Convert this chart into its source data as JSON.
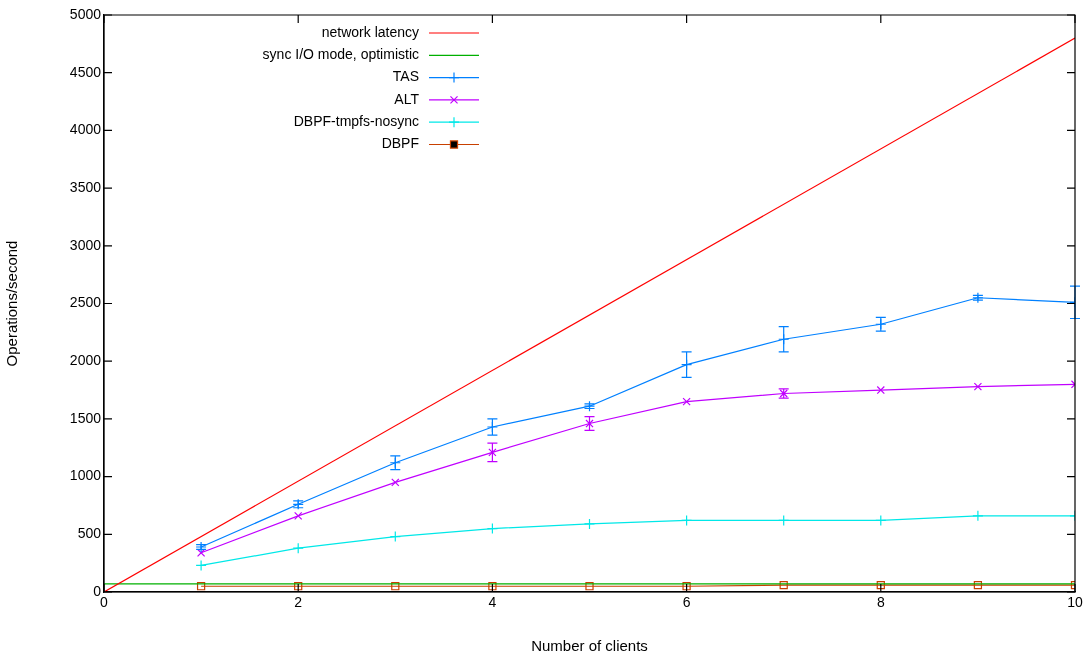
{
  "chart_data": {
    "type": "line",
    "xlabel": "Number of clients",
    "ylabel": "Operations/second",
    "xlim": [
      0,
      10
    ],
    "xticks": [
      0,
      2,
      4,
      6,
      8,
      10
    ],
    "ylim": [
      0,
      5000
    ],
    "yticks": [
      0,
      500,
      1000,
      1500,
      2000,
      2500,
      3000,
      3500,
      4000,
      4500,
      5000
    ],
    "grid": false,
    "legend": "top left",
    "series": [
      {
        "name": "network latency",
        "color": "#ff0000",
        "x": [
          0,
          10
        ],
        "values": [
          0,
          4800
        ],
        "marker": "none"
      },
      {
        "name": "sync I/O mode, optimistic",
        "color": "#00b000",
        "x": [
          0,
          10
        ],
        "values": [
          70,
          70
        ],
        "marker": "none"
      },
      {
        "name": "TAS",
        "color": "#0080ff",
        "x": [
          1,
          2,
          3,
          4,
          5,
          6,
          7,
          8,
          9,
          10
        ],
        "values": [
          390,
          760,
          1120,
          1430,
          1610,
          1970,
          2190,
          2320,
          2550,
          2510
        ],
        "errors": [
          20,
          30,
          60,
          70,
          20,
          110,
          110,
          60,
          20,
          140
        ],
        "marker": "cross"
      },
      {
        "name": "ALT",
        "color": "#c000ff",
        "x": [
          1,
          2,
          3,
          4,
          5,
          6,
          7,
          8,
          9,
          10
        ],
        "values": [
          340,
          660,
          950,
          1210,
          1460,
          1650,
          1720,
          1750,
          1780,
          1800
        ],
        "errors": [
          null,
          null,
          null,
          80,
          60,
          null,
          40,
          null,
          null,
          null
        ],
        "marker": "x"
      },
      {
        "name": "DBPF-tmpfs-nosync",
        "color": "#00e8e8",
        "x": [
          1,
          2,
          3,
          4,
          5,
          6,
          7,
          8,
          9,
          10
        ],
        "values": [
          230,
          380,
          480,
          550,
          590,
          620,
          620,
          620,
          660,
          660
        ],
        "marker": "cross"
      },
      {
        "name": "DBPF",
        "color": "#c84000",
        "x": [
          1,
          2,
          3,
          4,
          5,
          6,
          7,
          8,
          9,
          10
        ],
        "values": [
          50,
          50,
          50,
          50,
          50,
          50,
          60,
          60,
          60,
          60
        ],
        "marker": "square"
      }
    ]
  }
}
